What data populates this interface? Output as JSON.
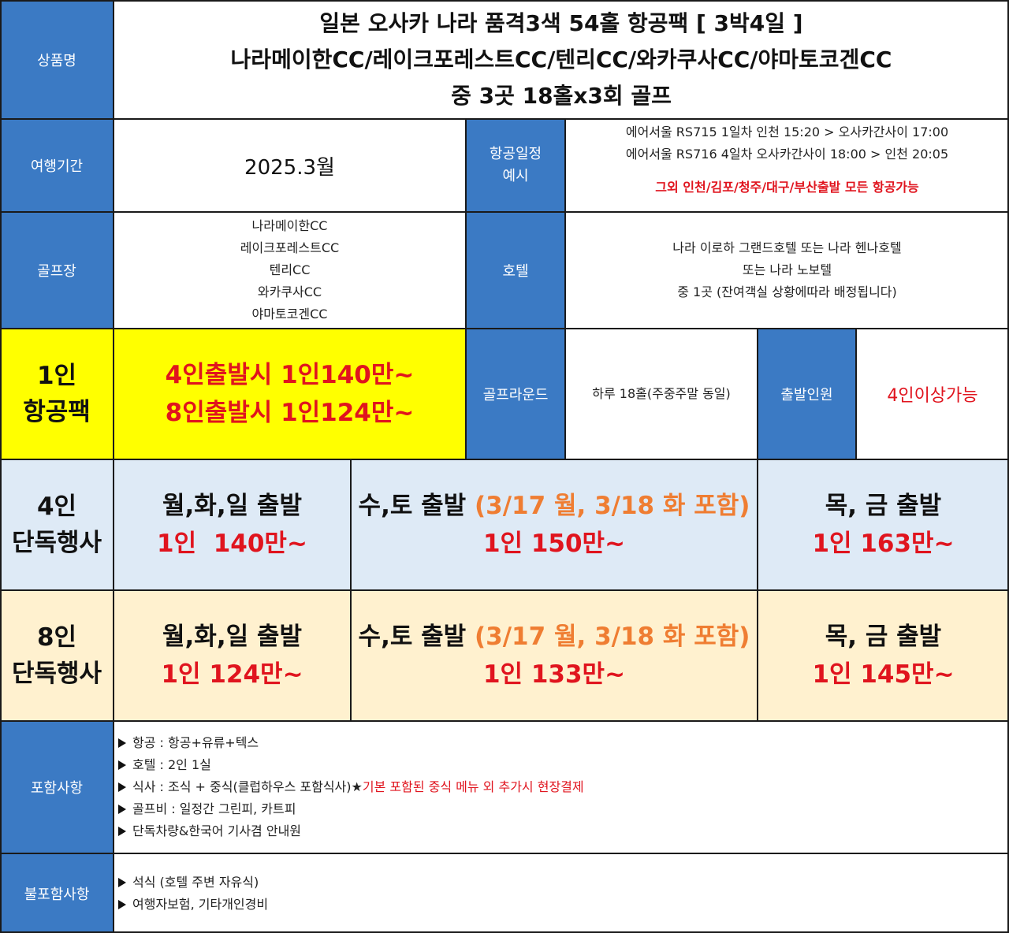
{
  "product": {
    "label": "상품명",
    "title_line1": "일본 오사카 나라 품격3색 54홀 항공팩 [ 3박4일 ]",
    "title_line2": "나라메이한CC/레이크포레스트CC/텐리CC/와카쿠사CC/야마토코겐CC",
    "title_line3": "중 3곳 18홀x3회 골프"
  },
  "period": {
    "label": "여행기간",
    "value": "2025.3월"
  },
  "flight": {
    "label_line1": "항공일정",
    "label_line2": "예시",
    "line1": "에어서울 RS715  1일차 인천 15:20 > 오사카간사이 17:00",
    "line2": "에어서울 RS716  4일차 오사카간사이 18:00 > 인천 20:05",
    "note": "그외 인천/김포/청주/대구/부산출발 모든 항공가능"
  },
  "golf": {
    "label": "골프장",
    "courses": [
      "나라메이한CC",
      "레이크포레스트CC",
      "텐리CC",
      "와카쿠사CC",
      "야마토코겐CC"
    ]
  },
  "hotel": {
    "label": "호텔",
    "line1": "나라 이로하 그랜드호텔 또는 나라 헨나호텔",
    "line2": "또는 나라 노보텔",
    "line3": "중 1곳 (잔여객실 상황에따라 배정됩니다)"
  },
  "pack": {
    "label_line1": "1인",
    "label_line2": "항공팩",
    "price1": "4인출발시 1인140만~",
    "price2": "8인출발시 1인124만~"
  },
  "round": {
    "label": "골프라운드",
    "value": "하루 18홀(주중주말 동일)"
  },
  "departure": {
    "label": "출발인원",
    "value": "4인이상가능"
  },
  "group4": {
    "label_line1": "4인",
    "label_line2": "단독행사",
    "a_days": "월,화,일 출발",
    "a_price": "1인  140만~",
    "b_days": "수,토 출발 ",
    "b_note": "(3/17 월, 3/18 화 포함)",
    "b_price": "1인 150만~",
    "c_days": "목, 금 출발",
    "c_price": "1인 163만~"
  },
  "group8": {
    "label_line1": "8인",
    "label_line2": "단독행사",
    "a_days": "월,화,일 출발",
    "a_price": "1인 124만~",
    "b_days": "수,토 출발 ",
    "b_note": "(3/17 월, 3/18 화 포함)",
    "b_price": "1인 133만~",
    "c_days": "목, 금 출발",
    "c_price": "1인 145만~"
  },
  "included": {
    "label": "포함사항",
    "items": [
      "항공 : 항공+유류+텍스",
      "호텔 : 2인 1실",
      "식사 : 조식 + 중식(클럽하우스 포함식사)★",
      "골프비 : 일정간 그린피, 카트피",
      "단독차량&한국어 기사겸 안내원"
    ],
    "meal_note": "기본 포함된 중식 메뉴 외 추가시 현장결제"
  },
  "excluded": {
    "label": "불포함사항",
    "items": [
      "석식 (호텔 주변 자유식)",
      "여행자보험, 기타개인경비"
    ]
  },
  "colors": {
    "header_blue": "#3b7ac4",
    "highlight_yellow": "#ffff00",
    "row4_bg": "#deeaf6",
    "row8_bg": "#fff1cf",
    "price_red": "#e0141e",
    "note_orange": "#ef7d32"
  }
}
